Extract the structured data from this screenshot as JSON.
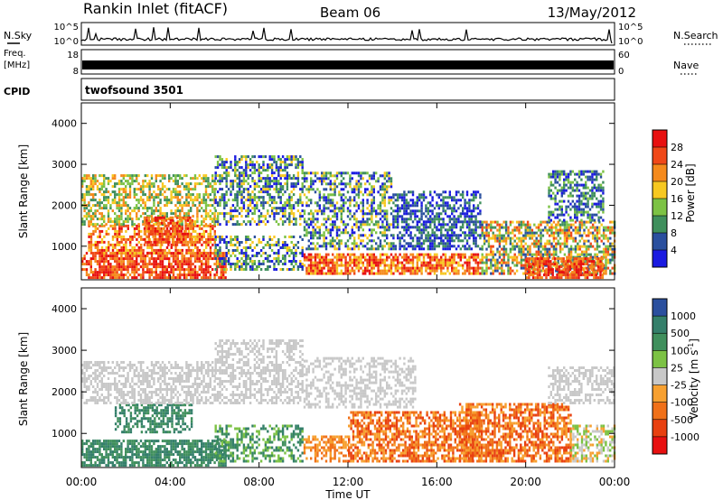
{
  "header": {
    "station": "Rankin Inlet (fitACF)",
    "beam": "Beam 06",
    "date": "13/May/2012"
  },
  "nsky_panel": {
    "left_label": "N.Sky",
    "right_label": "N.Search",
    "left_ticks": [
      "10^5",
      "10^0"
    ],
    "right_ticks": [
      "10^5",
      "10^0"
    ]
  },
  "freq_panel": {
    "left_label_line1": "Freq.",
    "left_label_line2": "[MHz]",
    "left_ticks": [
      "18",
      "8"
    ],
    "right_label": "Nave",
    "right_ticks": [
      "60",
      "0"
    ]
  },
  "cpid_panel": {
    "label": "CPID",
    "program": "twofsound 3501"
  },
  "x_axis": {
    "ticks": [
      "00:00",
      "04:00",
      "08:00",
      "12:00",
      "16:00",
      "20:00",
      "00:00"
    ],
    "label": "Time UT"
  },
  "chart_data": [
    {
      "type": "heatmap",
      "name": "power",
      "ylabel": "Slant Range [km]",
      "ylim": [
        180,
        4500
      ],
      "yticks": [
        1000,
        2000,
        3000,
        4000
      ],
      "xlim_hours": [
        0,
        24
      ],
      "colorbar": {
        "label": "Power [dB]",
        "tick_labels": [
          "28",
          "24",
          "20",
          "16",
          "12",
          "8",
          "4"
        ],
        "colors": [
          "#e81010",
          "#f04818",
          "#f58a1c",
          "#f7c821",
          "#7cc244",
          "#3f8f5c",
          "#2a4f9e",
          "#1a1ae0"
        ]
      }
    },
    {
      "type": "heatmap",
      "name": "velocity",
      "ylabel": "Slant Range [km]",
      "ylim": [
        180,
        4500
      ],
      "yticks": [
        1000,
        2000,
        3000,
        4000
      ],
      "xlim_hours": [
        0,
        24
      ],
      "colorbar": {
        "label": "Velocity [m s^-1]",
        "tick_labels": [
          "1000",
          "500",
          "100",
          "25",
          "-25",
          "-100",
          "-500",
          "-1000"
        ],
        "colors": [
          "#2a4f9e",
          "#347f6a",
          "#3f8f5c",
          "#7cc244",
          "#c8c8c8",
          "#f7a030",
          "#f07018",
          "#e84010",
          "#e81010"
        ]
      }
    }
  ]
}
